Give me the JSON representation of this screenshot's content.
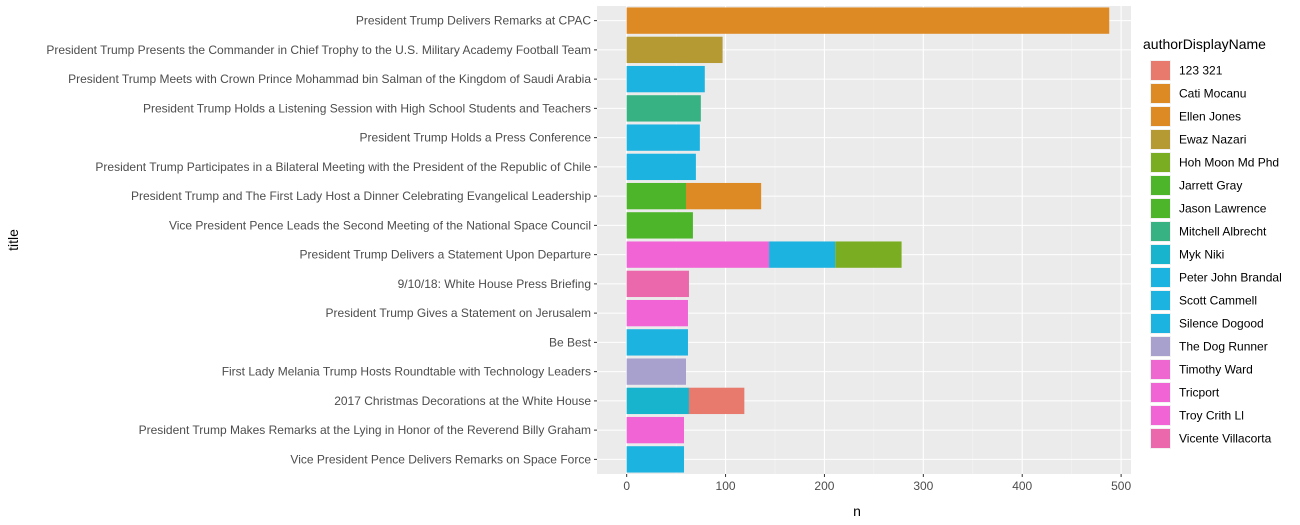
{
  "chart_data": {
    "type": "bar",
    "orientation": "horizontal",
    "stacked": true,
    "xlabel": "n",
    "ylabel": "title",
    "xlim": [
      -30,
      510
    ],
    "xticks": [
      0,
      100,
      200,
      300,
      400,
      500
    ],
    "grid": true,
    "legend_position": "right",
    "legend_title": "authorDisplayName",
    "authors": [
      {
        "name": "123 321",
        "color": "#E8796D"
      },
      {
        "name": "Cati Mocanu",
        "color": "#DE8A24"
      },
      {
        "name": "Ellen Jones",
        "color": "#DE8A24"
      },
      {
        "name": "Ewaz Nazari",
        "color": "#B59A33"
      },
      {
        "name": "Hoh Moon Md Phd",
        "color": "#7AAD22"
      },
      {
        "name": "Jarrett Gray",
        "color": "#4DB52A"
      },
      {
        "name": "Jason Lawrence",
        "color": "#4DB52A"
      },
      {
        "name": "Mitchell Albrecht",
        "color": "#37B383"
      },
      {
        "name": "Myk Niki",
        "color": "#18B3CC"
      },
      {
        "name": "Peter John Brandal",
        "color": "#1CB3E0"
      },
      {
        "name": "Scott Cammell",
        "color": "#1CB3E0"
      },
      {
        "name": "Silence Dogood",
        "color": "#1CB3E0"
      },
      {
        "name": "The Dog Runner",
        "color": "#A8A1CE"
      },
      {
        "name": "Timothy Ward",
        "color": "#EE66D0"
      },
      {
        "name": "Tricport",
        "color": "#F064D5"
      },
      {
        "name": "Troy Crith Ll",
        "color": "#F064D5"
      },
      {
        "name": "Vicente Villacorta",
        "color": "#EC68AC"
      }
    ],
    "rows": [
      {
        "title": "President Trump Delivers Remarks at CPAC",
        "segments": [
          {
            "author": "Cati Mocanu",
            "value": 488
          }
        ]
      },
      {
        "title": "President Trump Presents the Commander in Chief Trophy to the U.S. Military Academy Football Team",
        "segments": [
          {
            "author": "Ewaz Nazari",
            "value": 97
          }
        ]
      },
      {
        "title": "President Trump Meets with Crown Prince Mohammad bin Salman of the Kingdom of Saudi Arabia",
        "segments": [
          {
            "author": "Silence Dogood",
            "value": 79
          }
        ]
      },
      {
        "title": "President Trump Holds a Listening Session with High School Students and Teachers",
        "segments": [
          {
            "author": "Mitchell Albrecht",
            "value": 75
          }
        ]
      },
      {
        "title": "President Trump Holds a Press Conference",
        "segments": [
          {
            "author": "Silence Dogood",
            "value": 74
          }
        ]
      },
      {
        "title": "President Trump Participates in a Bilateral Meeting with the President of the Republic of Chile",
        "segments": [
          {
            "author": "Silence Dogood",
            "value": 70
          }
        ]
      },
      {
        "title": "President Trump and The First Lady Host a Dinner Celebrating Evangelical Leadership",
        "segments": [
          {
            "author": "Jason Lawrence",
            "value": 60
          },
          {
            "author": "Cati Mocanu",
            "value": 76
          }
        ]
      },
      {
        "title": "Vice President Pence Leads the Second Meeting of the National Space Council",
        "segments": [
          {
            "author": "Jason Lawrence",
            "value": 67
          }
        ]
      },
      {
        "title": "President Trump Delivers a Statement Upon Departure",
        "segments": [
          {
            "author": "Tricport",
            "value": 144
          },
          {
            "author": "Silence Dogood",
            "value": 67
          },
          {
            "author": "Hoh Moon Md Phd",
            "value": 67
          }
        ]
      },
      {
        "title": "9/10/18: White House Press Briefing",
        "segments": [
          {
            "author": "Vicente Villacorta",
            "value": 63
          }
        ]
      },
      {
        "title": "President Trump Gives a Statement on Jerusalem",
        "segments": [
          {
            "author": "Tricport",
            "value": 62
          }
        ]
      },
      {
        "title": "Be Best",
        "segments": [
          {
            "author": "Silence Dogood",
            "value": 62
          }
        ]
      },
      {
        "title": "First Lady Melania Trump Hosts Roundtable with Technology Leaders",
        "segments": [
          {
            "author": "The Dog Runner",
            "value": 60
          }
        ]
      },
      {
        "title": "2017 Christmas Decorations at the White House",
        "segments": [
          {
            "author": "Myk Niki",
            "value": 63
          },
          {
            "author": "123 321",
            "value": 56
          }
        ]
      },
      {
        "title": "President Trump Makes Remarks at the Lying in Honor of the Reverend Billy Graham",
        "segments": [
          {
            "author": "Tricport",
            "value": 58
          }
        ]
      },
      {
        "title": "Vice President Pence Delivers Remarks on Space Force",
        "segments": [
          {
            "author": "Silence Dogood",
            "value": 58
          }
        ]
      }
    ]
  }
}
